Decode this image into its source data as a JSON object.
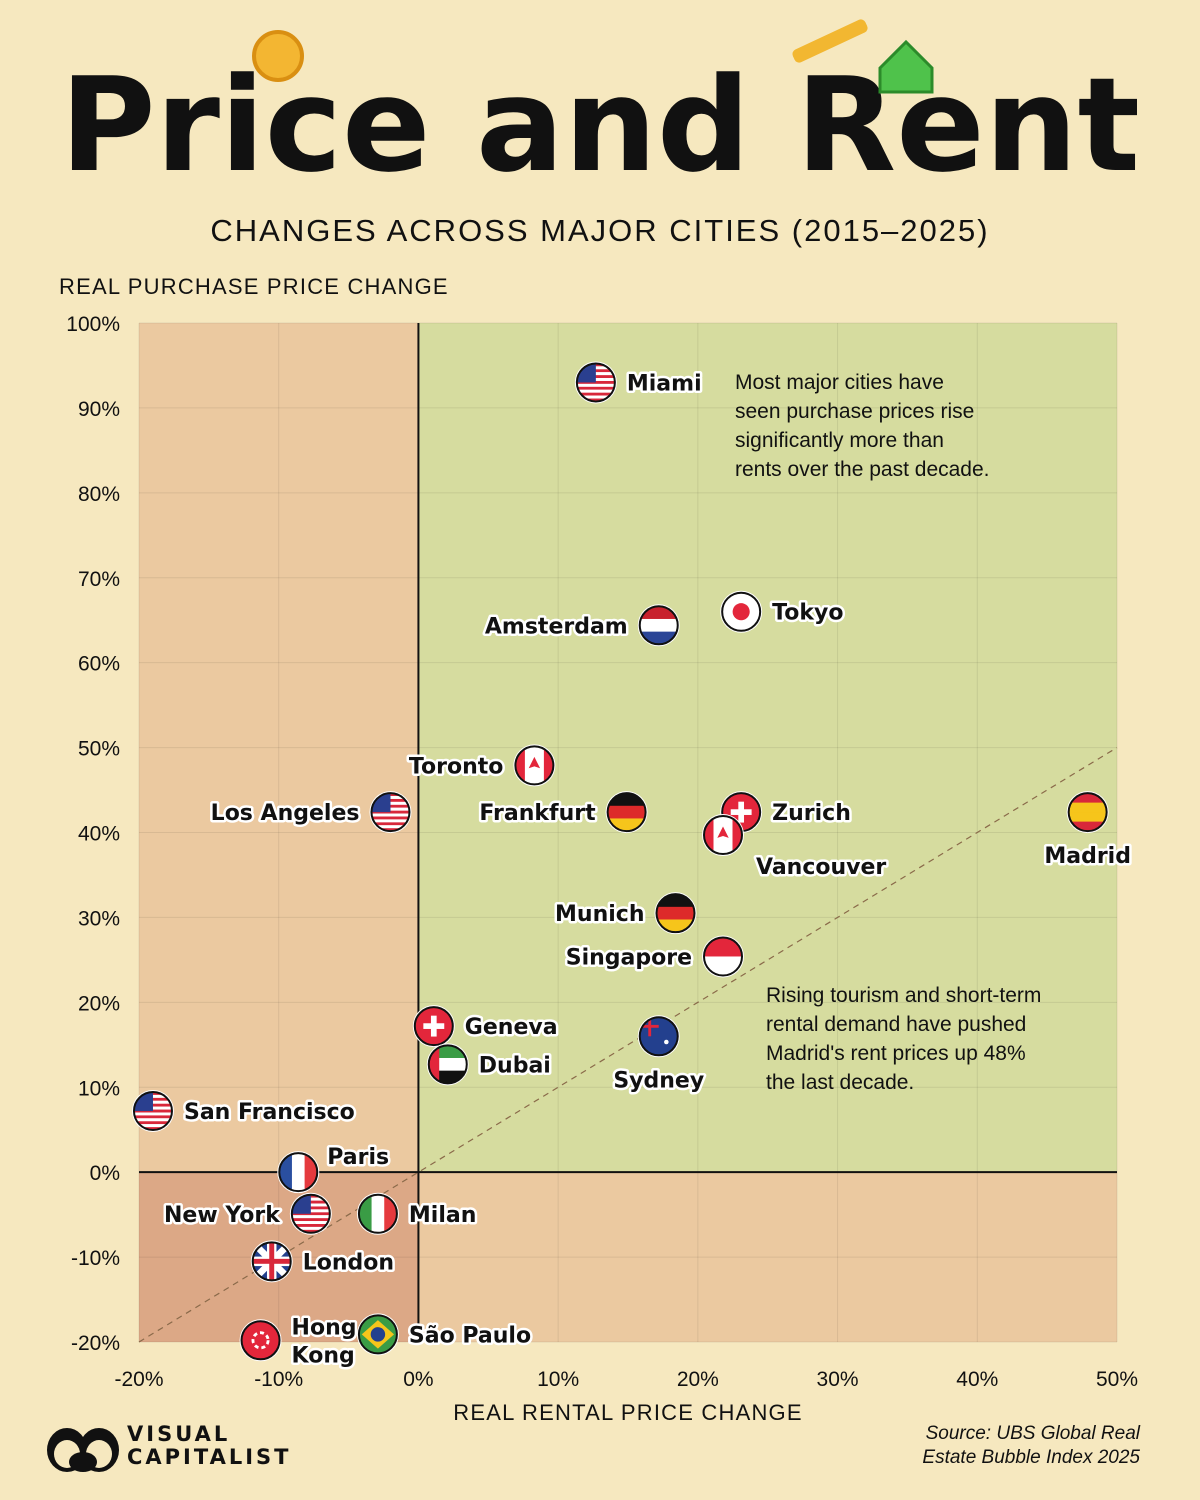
{
  "header": {
    "title": "Price and Rent",
    "subtitle": "CHANGES ACROSS MAJOR CITIES (2015–2025)"
  },
  "chart_data": {
    "type": "scatter",
    "xlabel": "REAL RENTAL PRICE CHANGE",
    "ylabel": "REAL PURCHASE PRICE CHANGE",
    "xlim": [
      -20,
      50
    ],
    "ylim": [
      -20,
      100
    ],
    "x_ticks": [
      "-20%",
      "-10%",
      "0%",
      "10%",
      "20%",
      "30%",
      "40%",
      "50%"
    ],
    "y_ticks": [
      "100%",
      "90%",
      "80%",
      "70%",
      "60%",
      "50%",
      "40%",
      "30%",
      "20%",
      "10%",
      "0%",
      "-10%",
      "-20%"
    ],
    "grid": true,
    "reference_line": "y = x (dashed)",
    "quadrant_colors": {
      "positive_both": "#d6dc9f",
      "negative_rent_or_price": "#ebc9a0",
      "negative_both": "#dca886"
    },
    "points": [
      {
        "city": "Miami",
        "flag": "us",
        "x": 12.7,
        "y": 93.0,
        "label": "right"
      },
      {
        "city": "Tokyo",
        "flag": "jp",
        "x": 23.1,
        "y": 66.0,
        "label": "right"
      },
      {
        "city": "Amsterdam",
        "flag": "nl",
        "x": 17.2,
        "y": 64.4,
        "label": "left"
      },
      {
        "city": "Toronto",
        "flag": "ca",
        "x": 8.3,
        "y": 47.9,
        "label": "left"
      },
      {
        "city": "Los Angeles",
        "flag": "us",
        "x": -2.0,
        "y": 42.4,
        "label": "left"
      },
      {
        "city": "Frankfurt",
        "flag": "de",
        "x": 14.9,
        "y": 42.4,
        "label": "left"
      },
      {
        "city": "Zurich",
        "flag": "ch",
        "x": 23.1,
        "y": 42.4,
        "label": "right"
      },
      {
        "city": "Vancouver",
        "flag": "ca",
        "x": 21.8,
        "y": 39.7,
        "label": "below-right"
      },
      {
        "city": "Madrid",
        "flag": "es",
        "x": 47.9,
        "y": 42.4,
        "label": "below"
      },
      {
        "city": "Munich",
        "flag": "de",
        "x": 18.4,
        "y": 30.5,
        "label": "left"
      },
      {
        "city": "Singapore",
        "flag": "sg",
        "x": 21.8,
        "y": 25.4,
        "label": "left"
      },
      {
        "city": "Geneva",
        "flag": "ch",
        "x": 1.1,
        "y": 17.2,
        "label": "right"
      },
      {
        "city": "Dubai",
        "flag": "ae",
        "x": 2.1,
        "y": 12.7,
        "label": "right"
      },
      {
        "city": "Sydney",
        "flag": "au",
        "x": 17.2,
        "y": 16.0,
        "label": "below"
      },
      {
        "city": "San Francisco",
        "flag": "us",
        "x": -19.0,
        "y": 7.2,
        "label": "right"
      },
      {
        "city": "Paris",
        "flag": "fr",
        "x": -8.6,
        "y": 0.0,
        "label": "above-right"
      },
      {
        "city": "New York",
        "flag": "us",
        "x": -7.7,
        "y": -4.9,
        "label": "left"
      },
      {
        "city": "Milan",
        "flag": "it",
        "x": -2.9,
        "y": -4.9,
        "label": "right"
      },
      {
        "city": "London",
        "flag": "gb",
        "x": -10.5,
        "y": -10.5,
        "label": "right"
      },
      {
        "city": "Hong Kong",
        "flag": "hk",
        "x": -11.3,
        "y": -19.8,
        "label": "right"
      },
      {
        "city": "São Paulo",
        "flag": "br",
        "x": -2.9,
        "y": -19.1,
        "label": "right"
      }
    ],
    "annotations": [
      {
        "lines": [
          "Most major cities have",
          "seen purchase prices rise",
          "significantly more than",
          "rents over the past decade."
        ]
      },
      {
        "lines": [
          "Rising tourism and short-term",
          "rental demand have pushed",
          "Madrid's rent prices up 48%",
          "the last decade."
        ]
      }
    ]
  },
  "footer": {
    "source_line1": "Source: UBS Global Real",
    "source_line2": "Estate Bubble Index 2025",
    "logo_line1": "VISUAL",
    "logo_line2": "CAPITALIST"
  }
}
